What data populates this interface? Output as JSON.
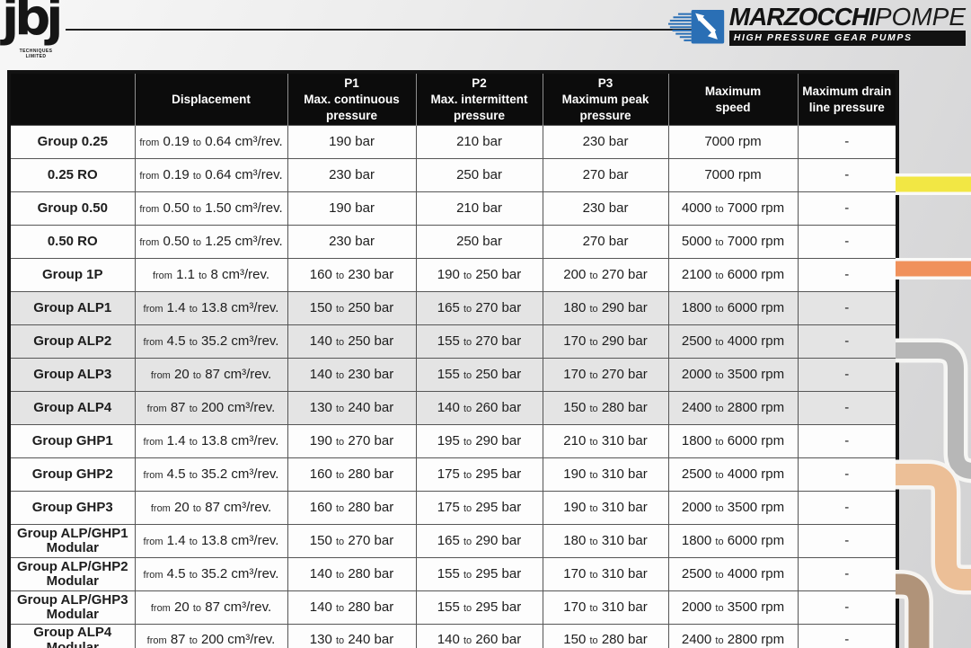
{
  "page": {
    "jbj_logo": {
      "text": "jbj",
      "sub1": "TECHNIQUES",
      "sub2": "LIMITED"
    },
    "marzocchi_logo": {
      "brand_bold": "MARZOCCHI",
      "brand_light": "POMPE",
      "tagline": "HIGH PRESSURE GEAR PUMPS",
      "icon_color": "#2a6fb5"
    }
  },
  "table": {
    "headers": [
      "",
      "Displacement",
      "P1\nMax. continuous\npressure",
      "P2\nMax. intermittent\npressure",
      "P3\nMaximum peak\npressure",
      "Maximum\nspeed",
      "Maximum drain\nline pressure"
    ],
    "column_keys": [
      "group",
      "displacement",
      "p1",
      "p2",
      "p3",
      "speed",
      "drain"
    ],
    "rows": [
      {
        "label": "Group 0.25",
        "disp": {
          "from": "0.19",
          "to": "0.64",
          "unit": "cm³/rev."
        },
        "p1": {
          "v1": "190",
          "unit": "bar"
        },
        "p2": {
          "v1": "210",
          "unit": "bar"
        },
        "p3": {
          "v1": "230",
          "unit": "bar"
        },
        "speed": {
          "v1": "7000",
          "unit": "rpm"
        },
        "drain": "-",
        "shaded": false
      },
      {
        "label": "0.25 RO",
        "disp": {
          "from": "0.19",
          "to": "0.64",
          "unit": "cm³/rev."
        },
        "p1": {
          "v1": "230",
          "unit": "bar"
        },
        "p2": {
          "v1": "250",
          "unit": "bar"
        },
        "p3": {
          "v1": "270",
          "unit": "bar"
        },
        "speed": {
          "v1": "7000",
          "unit": "rpm"
        },
        "drain": "-",
        "shaded": false
      },
      {
        "label": "Group 0.50",
        "disp": {
          "from": "0.50",
          "to": "1.50",
          "unit": "cm³/rev."
        },
        "p1": {
          "v1": "190",
          "unit": "bar"
        },
        "p2": {
          "v1": "210",
          "unit": "bar"
        },
        "p3": {
          "v1": "230",
          "unit": "bar"
        },
        "speed": {
          "v1": "4000",
          "v2": "7000",
          "unit": "rpm"
        },
        "drain": "-",
        "shaded": false
      },
      {
        "label": "0.50 RO",
        "disp": {
          "from": "0.50",
          "to": "1.25",
          "unit": "cm³/rev."
        },
        "p1": {
          "v1": "230",
          "unit": "bar"
        },
        "p2": {
          "v1": "250",
          "unit": "bar"
        },
        "p3": {
          "v1": "270",
          "unit": "bar"
        },
        "speed": {
          "v1": "5000",
          "v2": "7000",
          "unit": "rpm"
        },
        "drain": "-",
        "shaded": false
      },
      {
        "label": "Group 1P",
        "disp": {
          "from": "1.1",
          "to": "8",
          "unit": "cm³/rev."
        },
        "p1": {
          "v1": "160",
          "v2": "230",
          "unit": "bar"
        },
        "p2": {
          "v1": "190",
          "v2": "250",
          "unit": "bar"
        },
        "p3": {
          "v1": "200",
          "v2": "270",
          "unit": "bar"
        },
        "speed": {
          "v1": "2100",
          "v2": "6000",
          "unit": "rpm"
        },
        "drain": "-",
        "shaded": false
      },
      {
        "label": "Group ALP1",
        "disp": {
          "from": "1.4",
          "to": "13.8",
          "unit": "cm³/rev."
        },
        "p1": {
          "v1": "150",
          "v2": "250",
          "unit": "bar"
        },
        "p2": {
          "v1": "165",
          "v2": "270",
          "unit": "bar"
        },
        "p3": {
          "v1": "180",
          "v2": "290",
          "unit": "bar"
        },
        "speed": {
          "v1": "1800",
          "v2": "6000",
          "unit": "rpm"
        },
        "drain": "-",
        "shaded": true
      },
      {
        "label": "Group ALP2",
        "disp": {
          "from": "4.5",
          "to": "35.2",
          "unit": "cm³/rev."
        },
        "p1": {
          "v1": "140",
          "v2": "250",
          "unit": "bar"
        },
        "p2": {
          "v1": "155",
          "v2": "270",
          "unit": "bar"
        },
        "p3": {
          "v1": "170",
          "v2": "290",
          "unit": "bar"
        },
        "speed": {
          "v1": "2500",
          "v2": "4000",
          "unit": "rpm"
        },
        "drain": "-",
        "shaded": true
      },
      {
        "label": "Group ALP3",
        "disp": {
          "from": "20",
          "to": "87",
          "unit": "cm³/rev."
        },
        "p1": {
          "v1": "140",
          "v2": "230",
          "unit": "bar"
        },
        "p2": {
          "v1": "155",
          "v2": "250",
          "unit": "bar"
        },
        "p3": {
          "v1": "170",
          "v2": "270",
          "unit": "bar"
        },
        "speed": {
          "v1": "2000",
          "v2": "3500",
          "unit": "rpm"
        },
        "drain": "-",
        "shaded": true
      },
      {
        "label": "Group ALP4",
        "disp": {
          "from": "87",
          "to": "200",
          "unit": "cm³/rev."
        },
        "p1": {
          "v1": "130",
          "v2": "240",
          "unit": "bar"
        },
        "p2": {
          "v1": "140",
          "v2": "260",
          "unit": "bar"
        },
        "p3": {
          "v1": "150",
          "v2": "280",
          "unit": "bar"
        },
        "speed": {
          "v1": "2400",
          "v2": "2800",
          "unit": "rpm"
        },
        "drain": "-",
        "shaded": true
      },
      {
        "label": "Group GHP1",
        "disp": {
          "from": "1.4",
          "to": "13.8",
          "unit": "cm³/rev."
        },
        "p1": {
          "v1": "190",
          "v2": "270",
          "unit": "bar"
        },
        "p2": {
          "v1": "195",
          "v2": "290",
          "unit": "bar"
        },
        "p3": {
          "v1": "210",
          "v2": "310",
          "unit": "bar"
        },
        "speed": {
          "v1": "1800",
          "v2": "6000",
          "unit": "rpm"
        },
        "drain": "-",
        "shaded": false
      },
      {
        "label": "Group GHP2",
        "disp": {
          "from": "4.5",
          "to": "35.2",
          "unit": "cm³/rev."
        },
        "p1": {
          "v1": "160",
          "v2": "280",
          "unit": "bar"
        },
        "p2": {
          "v1": "175",
          "v2": "295",
          "unit": "bar"
        },
        "p3": {
          "v1": "190",
          "v2": "310",
          "unit": "bar"
        },
        "speed": {
          "v1": "2500",
          "v2": "4000",
          "unit": "rpm"
        },
        "drain": "-",
        "shaded": false
      },
      {
        "label": "Group GHP3",
        "disp": {
          "from": "20",
          "to": "87",
          "unit": "cm³/rev."
        },
        "p1": {
          "v1": "160",
          "v2": "280",
          "unit": "bar"
        },
        "p2": {
          "v1": "175",
          "v2": "295",
          "unit": "bar"
        },
        "p3": {
          "v1": "190",
          "v2": "310",
          "unit": "bar"
        },
        "speed": {
          "v1": "2000",
          "v2": "3500",
          "unit": "rpm"
        },
        "drain": "-",
        "shaded": false
      },
      {
        "label": "Group ALP/GHP1",
        "label2": "Modular",
        "disp": {
          "from": "1.4",
          "to": "13.8",
          "unit": "cm³/rev."
        },
        "p1": {
          "v1": "150",
          "v2": "270",
          "unit": "bar"
        },
        "p2": {
          "v1": "165",
          "v2": "290",
          "unit": "bar"
        },
        "p3": {
          "v1": "180",
          "v2": "310",
          "unit": "bar"
        },
        "speed": {
          "v1": "1800",
          "v2": "6000",
          "unit": "rpm"
        },
        "drain": "-",
        "shaded": false
      },
      {
        "label": "Group ALP/GHP2",
        "label2": "Modular",
        "disp": {
          "from": "4.5",
          "to": "35.2",
          "unit": "cm³/rev."
        },
        "p1": {
          "v1": "140",
          "v2": "280",
          "unit": "bar"
        },
        "p2": {
          "v1": "155",
          "v2": "295",
          "unit": "bar"
        },
        "p3": {
          "v1": "170",
          "v2": "310",
          "unit": "bar"
        },
        "speed": {
          "v1": "2500",
          "v2": "4000",
          "unit": "rpm"
        },
        "drain": "-",
        "shaded": false
      },
      {
        "label": "Group ALP/GHP3",
        "label2": "Modular",
        "disp": {
          "from": "20",
          "to": "87",
          "unit": "cm³/rev."
        },
        "p1": {
          "v1": "140",
          "v2": "280",
          "unit": "bar"
        },
        "p2": {
          "v1": "155",
          "v2": "295",
          "unit": "bar"
        },
        "p3": {
          "v1": "170",
          "v2": "310",
          "unit": "bar"
        },
        "speed": {
          "v1": "2000",
          "v2": "3500",
          "unit": "rpm"
        },
        "drain": "-",
        "shaded": false
      },
      {
        "label": "Group ALP4",
        "label2": "Modular",
        "disp": {
          "from": "87",
          "to": "200",
          "unit": "cm³/rev."
        },
        "p1": {
          "v1": "130",
          "v2": "240",
          "unit": "bar"
        },
        "p2": {
          "v1": "140",
          "v2": "260",
          "unit": "bar"
        },
        "p3": {
          "v1": "150",
          "v2": "280",
          "unit": "bar"
        },
        "speed": {
          "v1": "2400",
          "v2": "2800",
          "unit": "rpm"
        },
        "drain": "-",
        "shaded": false
      }
    ],
    "range_word": "to",
    "from_word": "from"
  },
  "decor": {
    "stripe_yellow": "#f2e744",
    "stripe_orange": "#f0915b",
    "pipe_gray": "#b7b7b7",
    "pipe_tan": "#ecbf97",
    "pipe_brown": "#b09379"
  }
}
